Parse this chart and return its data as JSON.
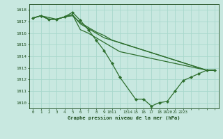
{
  "bg_color": "#c8e8e0",
  "grid_color": "#a8d8cc",
  "line_color": "#2d6e2d",
  "text_color": "#1a4a1a",
  "xlabel": "Graphe pression niveau de la mer (hPa)",
  "ylim": [
    1009.5,
    1018.5
  ],
  "xlim": [
    -0.5,
    23.5
  ],
  "yticks": [
    1010,
    1011,
    1012,
    1013,
    1014,
    1015,
    1016,
    1017,
    1018
  ],
  "xtick_labels": [
    "0",
    "1",
    "2",
    "3",
    "4",
    "5",
    "6",
    "7",
    "8",
    "9",
    "1011",
    "",
    "1314",
    "15",
    "16",
    "17",
    "18",
    "1920",
    "21",
    "2223"
  ],
  "series": [
    {
      "x": [
        0,
        1,
        2,
        3,
        4,
        5,
        6,
        7,
        8,
        9,
        10,
        11,
        13,
        14,
        15,
        16,
        17,
        18,
        19,
        20,
        21,
        22,
        23
      ],
      "y": [
        1017.3,
        1017.5,
        1017.2,
        1017.2,
        1017.4,
        1017.8,
        1017.1,
        1016.3,
        1015.4,
        1014.5,
        1013.4,
        1012.2,
        1010.3,
        1010.3,
        1009.7,
        1010.0,
        1010.1,
        1011.0,
        1011.9,
        1012.2,
        1012.5,
        1012.8,
        1012.8
      ],
      "markers": true
    },
    {
      "x": [
        0,
        1,
        2,
        3,
        4,
        5,
        6,
        7,
        8,
        9,
        10,
        11,
        22,
        23
      ],
      "y": [
        1017.3,
        1017.5,
        1017.2,
        1017.2,
        1017.4,
        1017.6,
        1016.3,
        1016.0,
        1015.6,
        1015.2,
        1014.8,
        1014.4,
        1012.8,
        1012.8
      ],
      "markers": false
    },
    {
      "x": [
        0,
        1,
        3,
        4,
        5,
        6,
        7,
        8,
        9,
        22,
        23
      ],
      "y": [
        1017.3,
        1017.5,
        1017.2,
        1017.4,
        1017.6,
        1016.8,
        1016.4,
        1016.0,
        1015.6,
        1012.8,
        1012.8
      ],
      "markers": false
    },
    {
      "x": [
        0,
        1,
        2,
        3,
        4,
        5,
        6,
        7,
        8,
        9,
        10,
        22,
        23
      ],
      "y": [
        1017.3,
        1017.5,
        1017.2,
        1017.2,
        1017.4,
        1017.5,
        1016.9,
        1016.5,
        1016.1,
        1015.8,
        1015.4,
        1012.8,
        1012.8
      ],
      "markers": false
    }
  ]
}
